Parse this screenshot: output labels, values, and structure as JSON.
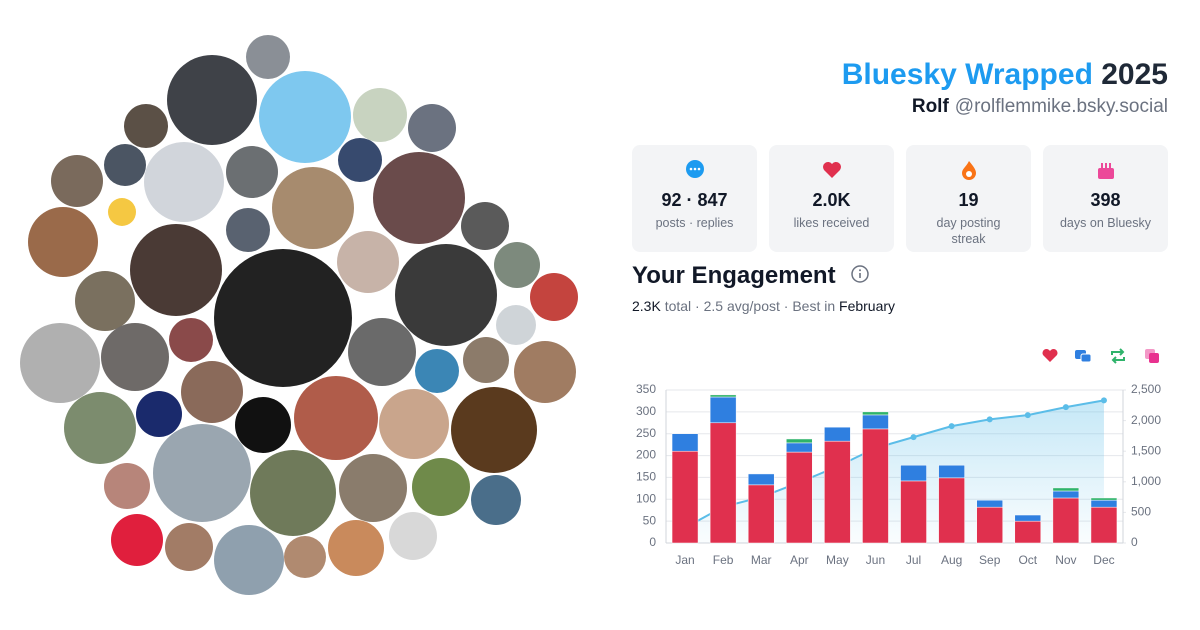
{
  "header": {
    "title": "Bluesky Wrapped",
    "year": "2025",
    "name": "Rolf",
    "handle": "@rolflemmike.bsky.social"
  },
  "stats": [
    {
      "value": "92 · 847",
      "label": "posts · replies"
    },
    {
      "value": "2.0K",
      "label": "likes received"
    },
    {
      "value": "19",
      "label": "day posting streak"
    },
    {
      "value": "398",
      "label": "days on Bluesky"
    }
  ],
  "engagement": {
    "title": "Your Engagement",
    "total": "2.3K",
    "summary": "total · 2.5 avg/post · Best in",
    "best": "February"
  },
  "chart_data": {
    "type": "bar",
    "stacked": true,
    "categories": [
      "Jan",
      "Feb",
      "Mar",
      "Apr",
      "May",
      "Jun",
      "Jul",
      "Aug",
      "Sep",
      "Oct",
      "Nov",
      "Dec"
    ],
    "series": [
      {
        "color": "#e0304e",
        "values": [
          210,
          275,
          133,
          208,
          233,
          261,
          142,
          149,
          82,
          50,
          103,
          82
        ]
      },
      {
        "color": "#2f7fe0",
        "values": [
          40,
          59,
          25,
          21,
          32,
          32,
          36,
          29,
          16,
          14,
          16,
          16
        ]
      },
      {
        "color": "#2fb36b",
        "values": [
          0,
          5,
          0,
          9,
          0,
          7,
          0,
          0,
          0,
          0,
          7,
          5
        ]
      },
      {
        "color": "#e8328f",
        "values": [
          0,
          1,
          0,
          0,
          0,
          0,
          0,
          0,
          0,
          0,
          0,
          0
        ]
      },
      {
        "type": "line",
        "axis": "y2",
        "color": "#5bbde8",
        "values": [
          250,
          590,
          750,
          990,
          1250,
          1550,
          1730,
          1910,
          2020,
          2090,
          2220,
          2330
        ]
      }
    ],
    "ylim": [
      0,
      350
    ],
    "yticks": [
      0,
      50,
      100,
      150,
      200,
      250,
      300,
      350
    ],
    "y2lim": [
      0,
      2500
    ],
    "y2ticks": [
      0,
      500,
      {
        "value": 1000,
        "label": "1,000"
      },
      {
        "value": 1500,
        "label": "1,500"
      },
      {
        "value": 2000,
        "label": "2,000"
      },
      {
        "value": 2500,
        "label": "2,500"
      }
    ],
    "grid": true
  }
}
